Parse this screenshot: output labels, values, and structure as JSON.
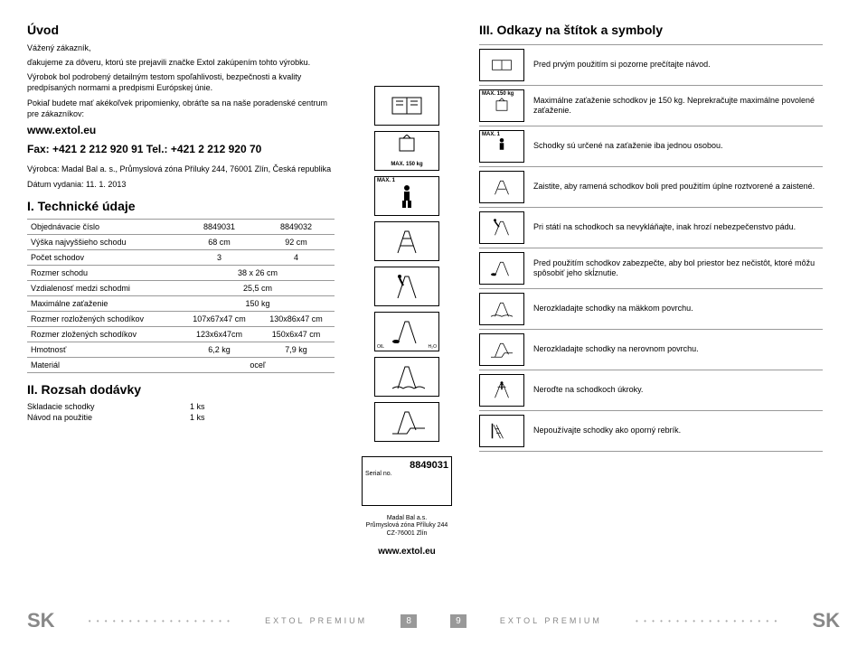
{
  "intro": {
    "heading": "Úvod",
    "p1": "Vážený zákazník,",
    "p2": "ďakujeme za dôveru, ktorú ste prejavili značke Extol zakúpením tohto výrobku.",
    "p3": "Výrobok bol podrobený detailným testom spoľahlivosti, bezpečnosti a kvality predpísaných normami a predpismi Európskej únie.",
    "p4": "Pokiaľ budete mať akékoľvek pripomienky, obráťte sa na naše poradenské centrum pre zákazníkov:",
    "web": "www.extol.eu",
    "fax": "Fax: +421 2 212 920 91  Tel.: +421 2 212 920 70",
    "mfr": "Výrobca: Madal Bal a. s., Průmyslová zóna Příluky 244, 76001 Zlín, Česká republika",
    "date": "Dátum vydania: 11. 1. 2013"
  },
  "tech": {
    "heading": "I. Technické údaje",
    "rows": [
      [
        "Objednávacie číslo",
        "8849031",
        "8849032"
      ],
      [
        "Výška najvyššieho schodu",
        "68 cm",
        "92 cm"
      ],
      [
        "Počet schodov",
        "3",
        "4"
      ],
      [
        "Rozmer schodu",
        "38 x 26 cm",
        ""
      ],
      [
        "Vzdialenosť medzi schodmi",
        "25,5 cm",
        ""
      ],
      [
        "Maximálne zaťaženie",
        "150 kg",
        ""
      ],
      [
        "Rozmer rozložených schodíkov",
        "107x67x47 cm",
        "130x86x47 cm"
      ],
      [
        "Rozmer zložených schodíkov",
        "123x6x47cm",
        "150x6x47 cm"
      ],
      [
        "Hmotnosť",
        "6,2 kg",
        "7,9 kg"
      ],
      [
        "Materiál",
        "oceľ",
        ""
      ]
    ]
  },
  "supply": {
    "heading": "II. Rozsah dodávky",
    "items": [
      [
        "Skladacie schodky",
        "1 ks"
      ],
      [
        "Návod na použitie",
        "1 ks"
      ]
    ]
  },
  "midIcons": {
    "max150": "MAX. 150 kg",
    "max1": "MAX. 1"
  },
  "serial": {
    "num": "8849031",
    "label": "Serial no.",
    "addr1": "Madal Bal a.s.",
    "addr2": "Průmyslová zóna Příluky 244",
    "addr3": "CZ-76001 Zlín",
    "url": "www.extol.eu"
  },
  "symbols": {
    "heading": "III. Odkazy na štítok a symboly",
    "rows": [
      {
        "label": "",
        "text": "Pred prvým použitím si pozorne prečítajte návod.",
        "icon": "book"
      },
      {
        "label": "MAX. 150 kg",
        "text": "Maximálne zaťaženie schodkov je 150 kg. Neprekračujte maximálne povolené zaťaženie.",
        "icon": "weight"
      },
      {
        "label": "MAX. 1",
        "text": "Schodky sú určené na zaťaženie iba jednou osobou.",
        "icon": "person"
      },
      {
        "label": "",
        "text": "Zaistite, aby ramená schodkov boli pred použitím úplne roztvorené a zaistené.",
        "icon": "open"
      },
      {
        "label": "",
        "text": "Pri státí na schodkoch sa nevykláňajte, inak hrozí nebezpečenstvo pádu.",
        "icon": "lean"
      },
      {
        "label": "",
        "text": "Pred použitím schodkov zabezpečte, aby bol priestor bez nečistôt, ktoré môžu spôsobiť jeho skĺznutie.",
        "icon": "oil"
      },
      {
        "label": "",
        "text": "Nerozkladajte schodky na mäkkom povrchu.",
        "icon": "soft"
      },
      {
        "label": "",
        "text": "Nerozkladajte schodky na nerovnom povrchu.",
        "icon": "uneven"
      },
      {
        "label": "",
        "text": "Neroďte na schodkoch úkroky.",
        "icon": "sidestep"
      },
      {
        "label": "",
        "text": "Nepoužívajte schodky ako oporný rebrík.",
        "icon": "leanwall"
      }
    ]
  },
  "footer": {
    "sk": "SK",
    "brand": "EXTOL PREMIUM",
    "pageLeft": "8",
    "pageRight": "9"
  }
}
